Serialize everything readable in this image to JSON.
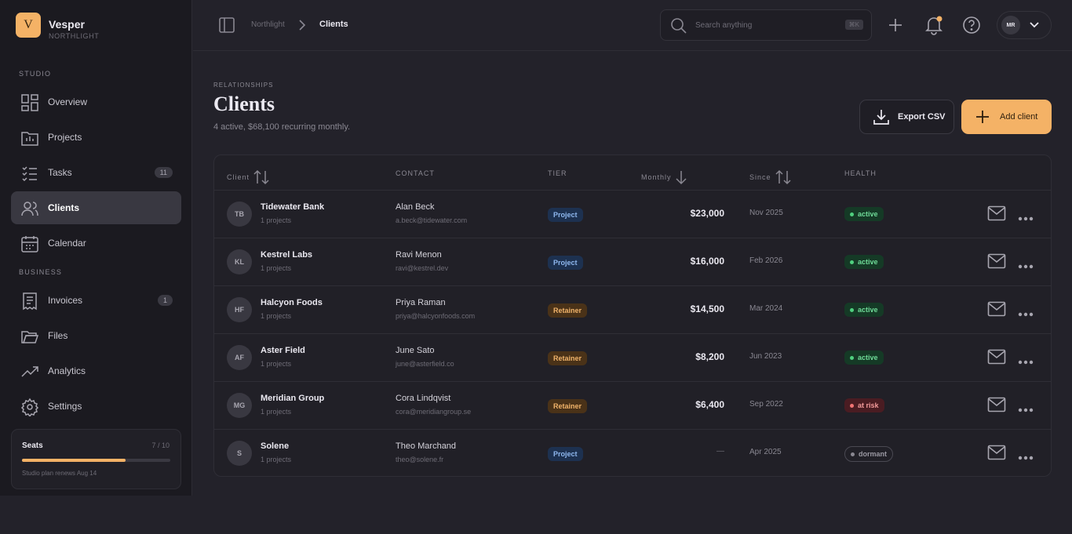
{
  "brand": {
    "initial": "V",
    "name": "Vesper",
    "org": "NORTHLIGHT"
  },
  "nav": [
    {
      "label": "STUDIO",
      "items": [
        {
          "label": "Overview"
        },
        {
          "label": "Projects"
        },
        {
          "label": "Tasks",
          "badge": 11
        },
        {
          "label": "Clients",
          "active": true
        },
        {
          "label": "Calendar"
        }
      ]
    },
    {
      "label": "BUSINESS",
      "items": [
        {
          "label": "Invoices",
          "badge": 1
        },
        {
          "label": "Files"
        },
        {
          "label": "Analytics"
        },
        {
          "label": "Settings"
        }
      ]
    }
  ],
  "seats": {
    "label": "Seats",
    "usage": {
      "value": 7,
      "max": 10,
      "label": "7 / 10"
    },
    "note": "Studio plan renews Aug 14"
  },
  "topbar": {
    "breadcrumb": [
      "Northlight",
      "Clients"
    ],
    "search": "Search anything",
    "shortcut": "⌘K",
    "avatar": "MR"
  },
  "header": {
    "eyebrow": "RELATIONSHIPS",
    "title": "Clients",
    "subtitle": "4 active, $68,100 recurring monthly.",
    "actions": [
      "Export CSV",
      "Add client"
    ]
  },
  "table": {
    "columns": [
      "Client",
      "CONTACT",
      "TIER",
      "Monthly",
      "Since",
      "HEALTH"
    ],
    "rows": [
      {
        "initials": "TB",
        "name": "Tidewater Bank",
        "projects": "1 projects",
        "contact": "Alan Beck",
        "email": "a.beck@tidewater.com",
        "tier": "Project",
        "monthly": "$23,000",
        "since": "Nov 2025",
        "health": "active"
      },
      {
        "initials": "KL",
        "name": "Kestrel Labs",
        "projects": "1 projects",
        "contact": "Ravi Menon",
        "email": "ravi@kestrel.dev",
        "tier": "Project",
        "monthly": "$16,000",
        "since": "Feb 2026",
        "health": "active"
      },
      {
        "initials": "HF",
        "name": "Halcyon Foods",
        "projects": "1 projects",
        "contact": "Priya Raman",
        "email": "priya@halcyonfoods.com",
        "tier": "Retainer",
        "monthly": "$14,500",
        "since": "Mar 2024",
        "health": "active"
      },
      {
        "initials": "AF",
        "name": "Aster Field",
        "projects": "1 projects",
        "contact": "June Sato",
        "email": "june@asterfield.co",
        "tier": "Retainer",
        "monthly": "$8,200",
        "since": "Jun 2023",
        "health": "active"
      },
      {
        "initials": "MG",
        "name": "Meridian Group",
        "projects": "1 projects",
        "contact": "Cora Lindqvist",
        "email": "cora@meridiangroup.se",
        "tier": "Retainer",
        "monthly": "$6,400",
        "since": "Sep 2022",
        "health": "at risk"
      },
      {
        "initials": "S",
        "name": "Solene",
        "projects": "1 projects",
        "contact": "Theo Marchand",
        "email": "theo@solene.fr",
        "tier": "Project",
        "monthly": "—",
        "since": "Apr 2025",
        "health": "dormant"
      }
    ]
  }
}
